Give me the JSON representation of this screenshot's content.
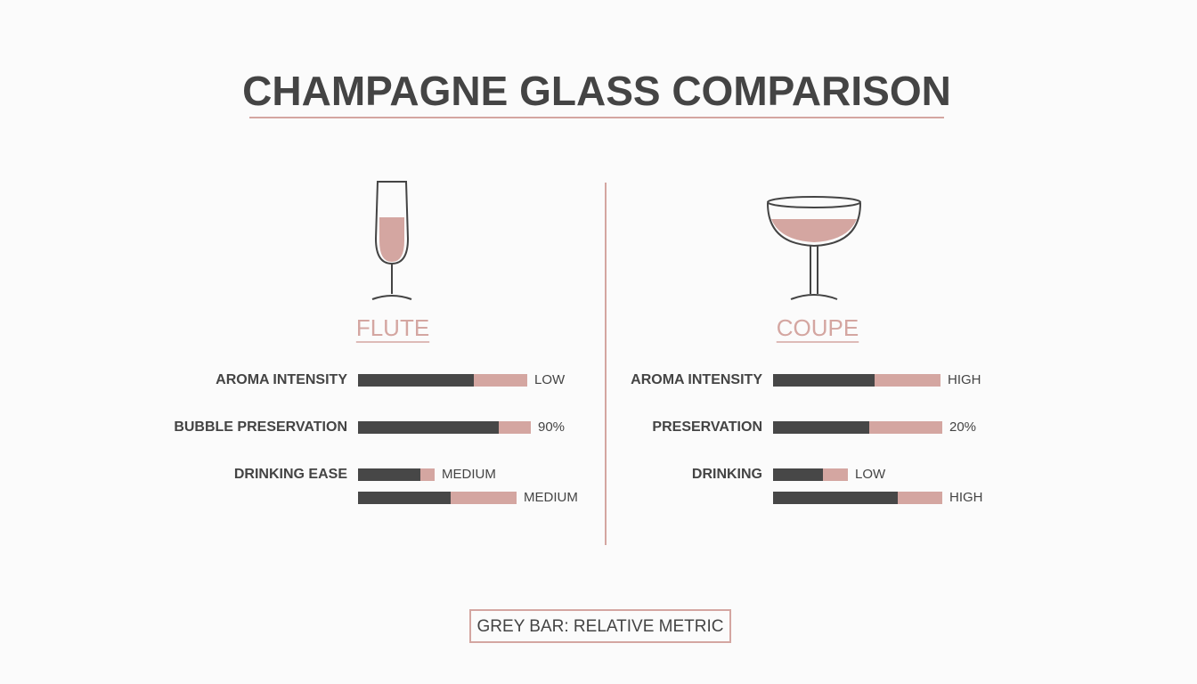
{
  "title": "CHAMPAGNE GLASS COMPARISON",
  "panels": [
    {
      "name": "FLUTE",
      "rows": [
        {
          "label": "AROMA INTENSITY",
          "grey": 65,
          "pink": 30,
          "value_label": "LOW"
        },
        {
          "label": "BUBBLE PRESERVATION",
          "grey": 79,
          "pink": 18,
          "value_label": "90%"
        },
        {
          "label": "DRINKING EASE",
          "grey": 35,
          "pink": 8,
          "value_label": "MEDIUM"
        },
        {
          "label": null,
          "grey": 52,
          "pink": 37,
          "value_label": "MEDIUM"
        }
      ]
    },
    {
      "name": "COUPE",
      "rows": [
        {
          "label": "AROMA INTENSITY",
          "grey": 57,
          "pink": 37,
          "value_label": "HIGH"
        },
        {
          "label": "PRESERVATION",
          "grey": 54,
          "pink": 41,
          "value_label": "20%"
        },
        {
          "label": "DRINKING",
          "grey": 28,
          "pink": 14,
          "value_label": "LOW"
        },
        {
          "label": null,
          "grey": 70,
          "pink": 25,
          "value_label": "HIGH"
        }
      ]
    }
  ],
  "legend": "GREY BAR: RELATIVE METRIC",
  "colors": {
    "grey": "#474747",
    "pink": "#d4a6a1"
  }
}
